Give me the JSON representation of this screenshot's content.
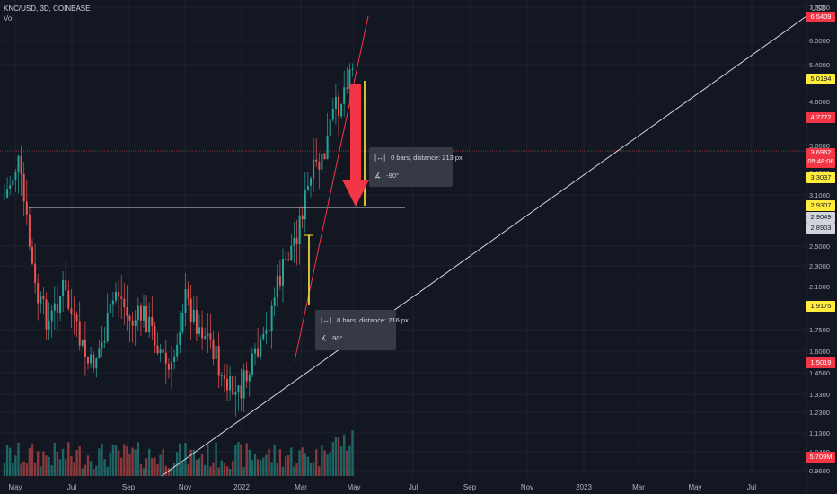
{
  "header": {
    "title": "KNC/USD, 3D, COINBASE",
    "vol_label": "Vol"
  },
  "axis": {
    "currency": "USD",
    "price_ticks": [
      "7.0000",
      "6.0000",
      "5.4000",
      "4.6000",
      "3.8000",
      "3.4000",
      "3.1000",
      "2.5000",
      "2.3000",
      "2.1000",
      "1.7500",
      "1.6000",
      "1.4500",
      "1.3300",
      "1.2300",
      "1.1300",
      "1.0400",
      "0.9600"
    ],
    "time_ticks": [
      "May",
      "Jul",
      "Sep",
      "Nov",
      "2022",
      "Mar",
      "May",
      "Jul",
      "Sep",
      "Nov",
      "2023",
      "Mar",
      "May",
      "Jul"
    ]
  },
  "badges": [
    {
      "text": "6.5409",
      "bg": "#f23645",
      "fg": "#ffffff"
    },
    {
      "text": "5.0194",
      "bg": "#ffeb3b",
      "fg": "#131722"
    },
    {
      "text": "4.2772",
      "bg": "#f23645",
      "fg": "#ffffff"
    },
    {
      "text": "3.6962\n05:48:06",
      "bg": "#f23645",
      "fg": "#ffffff"
    },
    {
      "text": "3.3037",
      "bg": "#ffeb3b",
      "fg": "#131722"
    },
    {
      "text": "2.9307",
      "bg": "#ffeb3b",
      "fg": "#131722"
    },
    {
      "text": "2.9049",
      "bg": "#d1d4dc",
      "fg": "#131722"
    },
    {
      "text": "2.8903",
      "bg": "#d1d4dc",
      "fg": "#131722"
    },
    {
      "text": "1.9175",
      "bg": "#ffeb3b",
      "fg": "#131722"
    },
    {
      "text": "1.5019",
      "bg": "#f23645",
      "fg": "#ffffff"
    },
    {
      "text": "5.709M",
      "bg": "#f23645",
      "fg": "#ffffff"
    }
  ],
  "tooltips": [
    {
      "distance": "0 bars, distance: 213 px",
      "angle": "-90°"
    },
    {
      "distance": "0 bars, distance: 216 px",
      "angle": "90°"
    }
  ],
  "colors": {
    "up": "#26a69a",
    "down": "#ef5350",
    "yellow": "#ffeb3b",
    "bg": "#131722"
  }
}
